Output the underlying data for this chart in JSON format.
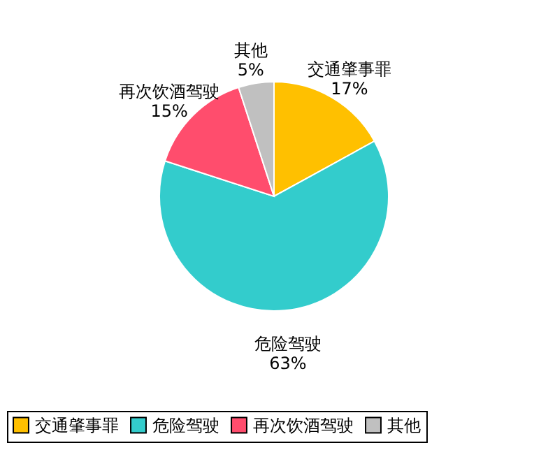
{
  "chart_data": {
    "type": "pie",
    "categories": [
      "交通肇事罪",
      "危险驾驶",
      "再次饮酒驾驶",
      "其他"
    ],
    "values": [
      17,
      63,
      15,
      5
    ],
    "value_labels": [
      "17%",
      "63%",
      "15%",
      "5%"
    ],
    "colors": [
      "#ffc000",
      "#33cccc",
      "#ff4d6d",
      "#c0c0c0"
    ],
    "legend": "bottom"
  }
}
